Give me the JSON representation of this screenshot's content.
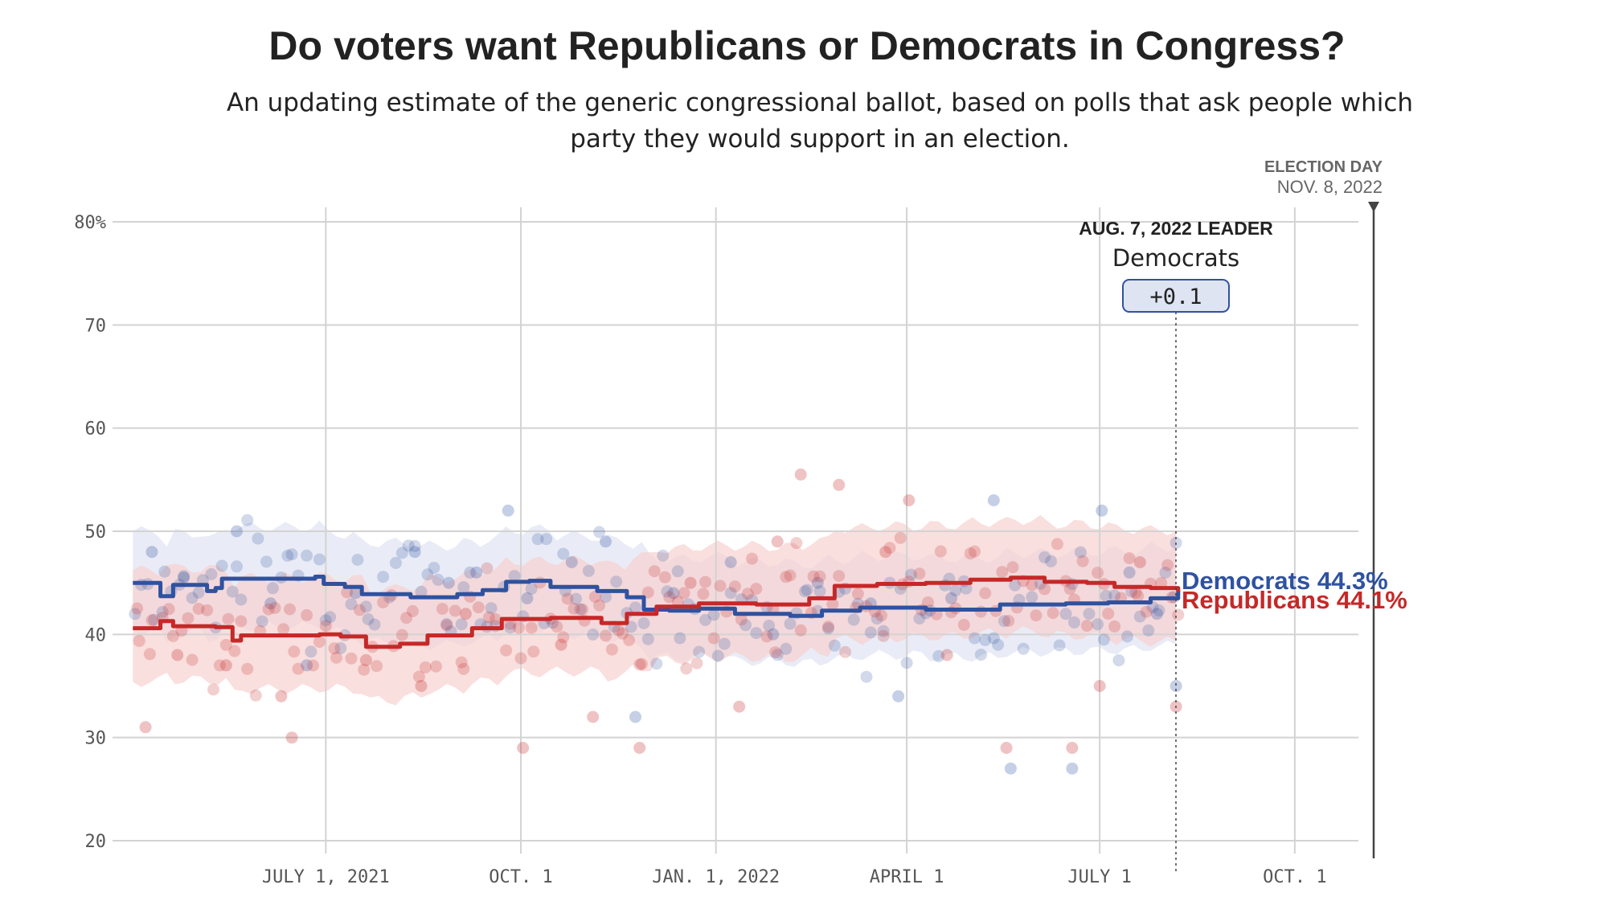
{
  "header": {
    "title": "Do voters want Republicans or Democrats in Congress?",
    "subtitle": "An updating estimate of the generic congressional ballot, based on polls that ask people which party they would support in an election."
  },
  "election": {
    "label": "ELECTION DAY",
    "date": "NOV. 8, 2022"
  },
  "leader": {
    "label": "AUG. 7, 2022 LEADER",
    "party": "Democrats",
    "margin": "+0.1"
  },
  "end_labels": {
    "dem": "Democrats 44.3%",
    "rep": "Republicans 44.1%"
  },
  "colors": {
    "dem": "#2f52a0",
    "rep": "#c62828",
    "dem_band": "#dfe4f2",
    "rep_band": "#f6d2d0",
    "grid": "#d3d3d3"
  },
  "chart_data": {
    "type": "line",
    "x_ticks": [
      {
        "date": "2021-07-01",
        "label": "JULY 1, 2021"
      },
      {
        "date": "2021-10-01",
        "label": "OCT. 1"
      },
      {
        "date": "2022-01-01",
        "label": "JAN. 1, 2022"
      },
      {
        "date": "2022-04-01",
        "label": "APRIL 1"
      },
      {
        "date": "2022-07-01",
        "label": "JULY 1"
      },
      {
        "date": "2022-10-01",
        "label": "OCT. 1"
      }
    ],
    "y_ticks": [
      {
        "value": 20,
        "label": "20"
      },
      {
        "value": 30,
        "label": "30"
      },
      {
        "value": 40,
        "label": "40"
      },
      {
        "value": 50,
        "label": "50"
      },
      {
        "value": 60,
        "label": "60"
      },
      {
        "value": 70,
        "label": "70"
      },
      {
        "value": 80,
        "label": "80%"
      }
    ],
    "xlim": [
      "2021-03-30",
      "2022-10-31"
    ],
    "ylim": [
      20,
      80
    ],
    "grid": true,
    "series": [
      {
        "name": "Democrats",
        "color": "#2f52a0",
        "values": [
          [
            "2021-04-01",
            45.0
          ],
          [
            "2021-04-12",
            45.0
          ],
          [
            "2021-04-14",
            43.7
          ],
          [
            "2021-04-18",
            43.7
          ],
          [
            "2021-04-20",
            44.8
          ],
          [
            "2021-05-04",
            44.8
          ],
          [
            "2021-05-06",
            44.2
          ],
          [
            "2021-05-10",
            44.5
          ],
          [
            "2021-05-13",
            45.4
          ],
          [
            "2021-06-26",
            45.6
          ],
          [
            "2021-06-30",
            44.9
          ],
          [
            "2021-07-10",
            44.6
          ],
          [
            "2021-07-18",
            43.9
          ],
          [
            "2021-08-10",
            43.6
          ],
          [
            "2021-09-01",
            43.9
          ],
          [
            "2021-09-13",
            44.3
          ],
          [
            "2021-09-24",
            45.1
          ],
          [
            "2021-10-05",
            45.2
          ],
          [
            "2021-10-15",
            44.6
          ],
          [
            "2021-11-06",
            44.2
          ],
          [
            "2021-11-20",
            43.6
          ],
          [
            "2021-11-28",
            42.4
          ],
          [
            "2021-12-10",
            42.3
          ],
          [
            "2021-12-24",
            42.5
          ],
          [
            "2022-01-10",
            42.0
          ],
          [
            "2022-02-05",
            41.8
          ],
          [
            "2022-02-20",
            42.3
          ],
          [
            "2022-03-10",
            42.6
          ],
          [
            "2022-04-10",
            42.4
          ],
          [
            "2022-05-15",
            42.9
          ],
          [
            "2022-06-15",
            43.0
          ],
          [
            "2022-07-05",
            43.1
          ],
          [
            "2022-07-25",
            43.5
          ],
          [
            "2022-08-07",
            44.3
          ]
        ]
      },
      {
        "name": "Republicans",
        "color": "#c62828",
        "values": [
          [
            "2021-04-01",
            40.6
          ],
          [
            "2021-04-12",
            40.6
          ],
          [
            "2021-04-14",
            41.3
          ],
          [
            "2021-04-20",
            40.8
          ],
          [
            "2021-05-10",
            40.7
          ],
          [
            "2021-05-18",
            39.4
          ],
          [
            "2021-05-22",
            39.9
          ],
          [
            "2021-06-28",
            40.0
          ],
          [
            "2021-07-08",
            39.8
          ],
          [
            "2021-07-20",
            38.8
          ],
          [
            "2021-08-05",
            39.1
          ],
          [
            "2021-08-18",
            39.9
          ],
          [
            "2021-09-08",
            40.6
          ],
          [
            "2021-09-22",
            41.5
          ],
          [
            "2021-10-15",
            41.6
          ],
          [
            "2021-11-08",
            41.1
          ],
          [
            "2021-11-20",
            42.0
          ],
          [
            "2021-12-04",
            42.7
          ],
          [
            "2021-12-24",
            43.0
          ],
          [
            "2022-01-20",
            42.9
          ],
          [
            "2022-02-14",
            43.5
          ],
          [
            "2022-02-26",
            44.7
          ],
          [
            "2022-03-18",
            44.9
          ],
          [
            "2022-04-10",
            45.0
          ],
          [
            "2022-05-01",
            45.3
          ],
          [
            "2022-05-20",
            45.5
          ],
          [
            "2022-06-05",
            45.1
          ],
          [
            "2022-06-25",
            45.0
          ],
          [
            "2022-07-08",
            44.6
          ],
          [
            "2022-07-25",
            44.5
          ],
          [
            "2022-08-07",
            44.1
          ]
        ]
      }
    ],
    "bands": [
      {
        "name": "Democrats",
        "lower": 40,
        "upper": 50
      },
      {
        "name": "Republicans",
        "lower": 35.5,
        "upper": 51
      }
    ],
    "polls": {
      "Democrats": [
        [
          "2021-04-10",
          48.0
        ],
        [
          "2021-04-25",
          45.5
        ],
        [
          "2021-05-20",
          50.0
        ],
        [
          "2021-06-05",
          43.0
        ],
        [
          "2021-06-22",
          37.0
        ],
        [
          "2021-07-15",
          44.0
        ],
        [
          "2021-08-12",
          48.0
        ],
        [
          "2021-08-28",
          45.0
        ],
        [
          "2021-09-10",
          46.0
        ],
        [
          "2021-09-25",
          52.0
        ],
        [
          "2021-10-04",
          43.5
        ],
        [
          "2021-10-25",
          47.0
        ],
        [
          "2021-11-10",
          49.0
        ],
        [
          "2021-11-24",
          32.0
        ],
        [
          "2021-12-12",
          44.0
        ],
        [
          "2022-01-08",
          47.0
        ],
        [
          "2022-01-28",
          40.0
        ],
        [
          "2022-02-18",
          45.0
        ],
        [
          "2022-03-15",
          43.0
        ],
        [
          "2022-03-28",
          34.0
        ],
        [
          "2022-04-22",
          43.5
        ],
        [
          "2022-05-12",
          53.0
        ],
        [
          "2022-05-20",
          27.0
        ],
        [
          "2022-06-18",
          27.0
        ],
        [
          "2022-07-02",
          52.0
        ],
        [
          "2022-07-15",
          46.0
        ],
        [
          "2022-07-28",
          42.0
        ],
        [
          "2022-08-06",
          35.0
        ]
      ],
      "Republicans": [
        [
          "2021-04-07",
          31.0
        ],
        [
          "2021-04-22",
          38.0
        ],
        [
          "2021-05-15",
          37.0
        ],
        [
          "2021-06-10",
          34.0
        ],
        [
          "2021-06-15",
          30.0
        ],
        [
          "2021-07-20",
          37.5
        ],
        [
          "2021-08-15",
          35.0
        ],
        [
          "2021-09-05",
          42.0
        ],
        [
          "2021-10-02",
          29.0
        ],
        [
          "2021-10-20",
          39.0
        ],
        [
          "2021-11-04",
          32.0
        ],
        [
          "2021-11-26",
          29.0
        ],
        [
          "2021-12-20",
          45.0
        ],
        [
          "2022-01-12",
          33.0
        ],
        [
          "2022-01-30",
          49.0
        ],
        [
          "2022-02-10",
          55.5
        ],
        [
          "2022-02-28",
          54.5
        ],
        [
          "2022-03-22",
          48.0
        ],
        [
          "2022-04-02",
          53.0
        ],
        [
          "2022-04-20",
          38.0
        ],
        [
          "2022-05-18",
          29.0
        ],
        [
          "2022-06-18",
          29.0
        ],
        [
          "2022-07-01",
          35.0
        ],
        [
          "2022-07-20",
          47.0
        ],
        [
          "2022-08-06",
          33.0
        ]
      ]
    }
  }
}
